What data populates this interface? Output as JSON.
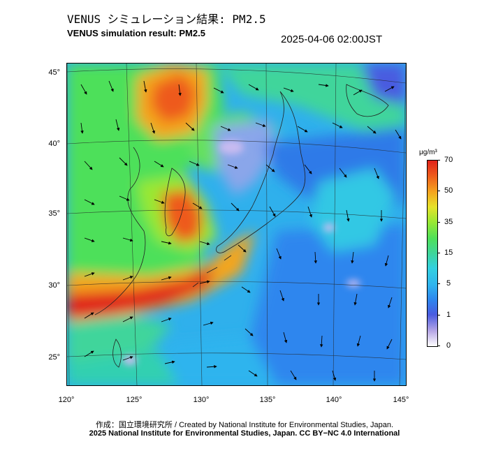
{
  "header": {
    "title_ja": "VENUS シミュレーション結果: PM2.5",
    "title_en": "VENUS simulation result: PM2.5",
    "timestamp": "2025-04-06 02:00JST"
  },
  "map": {
    "region": "East Asia",
    "lat_labels": [
      "45°",
      "40°",
      "35°",
      "30°",
      "25°"
    ],
    "lon_labels": [
      "120°",
      "125°",
      "130°",
      "135°",
      "140°",
      "145°"
    ],
    "colors": {
      "ocean_base": "#2fb0ec",
      "high": "#e0221a",
      "mid": "#f4a51e",
      "moderate": "#9ae832",
      "low": "#4a5ce0",
      "very_low": "#b8a8e6"
    },
    "layers": [
      "pm25-concentration",
      "wind-vectors",
      "coastlines",
      "graticule"
    ]
  },
  "colorbar": {
    "unit": "μg/m³",
    "ticks": [
      "70",
      "50",
      "35",
      "15",
      "5",
      "1",
      "0"
    ]
  },
  "footer": {
    "credit_1": "作成：国立環境研究所 / Created by National Institute for Environmental Studies, Japan.",
    "credit_2": "2025 National Institute for Environmental Studies, Japan. CC BY−NC 4.0 International"
  }
}
